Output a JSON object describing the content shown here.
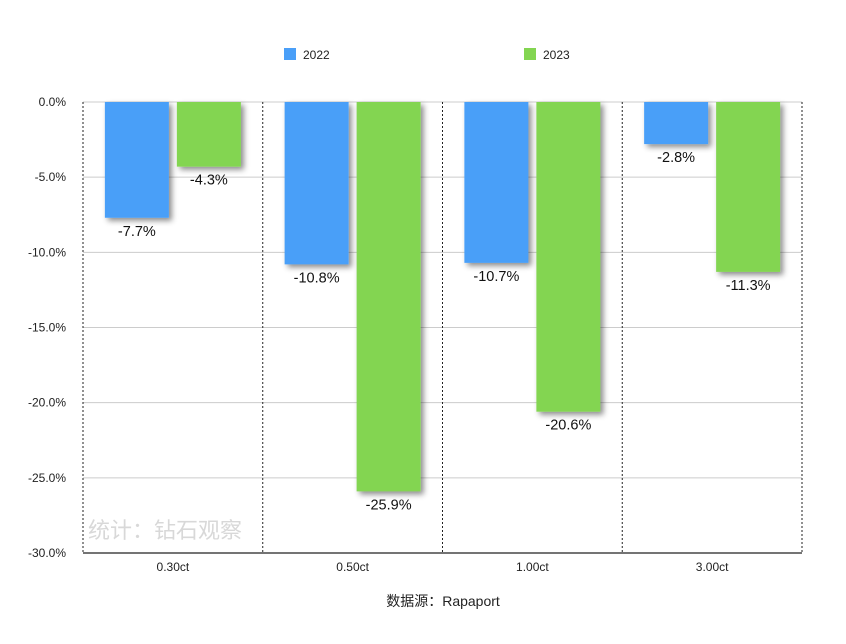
{
  "chart_data": {
    "type": "bar",
    "categories": [
      "0.30ct",
      "0.50ct",
      "1.00ct",
      "3.00ct"
    ],
    "series": [
      {
        "name": "2022",
        "color": "#4a9ff8",
        "values": [
          -7.7,
          -10.8,
          -10.7,
          -2.8
        ],
        "labels": [
          "-7.7%",
          "-10.8%",
          "-10.7%",
          "-2.8%"
        ]
      },
      {
        "name": "2023",
        "color": "#83d551",
        "values": [
          -4.3,
          -25.9,
          -20.6,
          -11.3
        ],
        "labels": [
          "-4.3%",
          "-25.9%",
          "-20.6%",
          "-11.3%"
        ]
      }
    ],
    "ylim": [
      -30,
      0
    ],
    "yticks": [
      0,
      -5,
      -10,
      -15,
      -20,
      -25,
      -30
    ],
    "ytick_labels": [
      "0.0%",
      "-5.0%",
      "-10.0%",
      "-15.0%",
      "-20.0%",
      "-25.0%",
      "-30.0%"
    ],
    "grid": true,
    "legend_position": "top",
    "source": "数据源：Rapaport",
    "watermark": "统计：钻石观察"
  }
}
